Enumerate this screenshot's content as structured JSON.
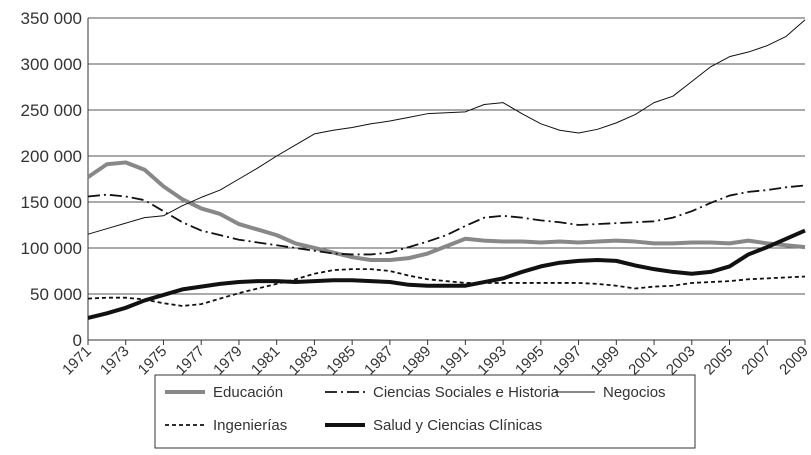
{
  "chart_data": {
    "type": "line",
    "x": [
      1971,
      1972,
      1973,
      1974,
      1975,
      1976,
      1977,
      1978,
      1979,
      1980,
      1981,
      1982,
      1983,
      1984,
      1985,
      1986,
      1987,
      1988,
      1989,
      1990,
      1991,
      1992,
      1993,
      1994,
      1995,
      1996,
      1997,
      1998,
      1999,
      2000,
      2001,
      2002,
      2003,
      2004,
      2005,
      2006,
      2007,
      2008,
      2009
    ],
    "xlim": [
      1971,
      2009
    ],
    "xticks": [
      1971,
      1973,
      1975,
      1977,
      1979,
      1981,
      1983,
      1985,
      1987,
      1989,
      1991,
      1993,
      1995,
      1997,
      1999,
      2001,
      2003,
      2005,
      2007,
      2009
    ],
    "ylim": [
      0,
      350000
    ],
    "yticks": [
      0,
      {
        "value": 50000,
        "label": "50 000"
      },
      {
        "value": 100000,
        "label": "100 000"
      },
      {
        "value": 150000,
        "label": "150 000"
      },
      {
        "value": 200000,
        "label": "200 000"
      },
      {
        "value": 250000,
        "label": "250 000"
      },
      {
        "value": 300000,
        "label": "300 000"
      },
      {
        "value": 350000,
        "label": "350 000"
      }
    ],
    "grid": true,
    "legend": "bottom",
    "series": [
      {
        "name": "Educación",
        "color": "#888888",
        "width": 4,
        "dash": "none",
        "values": [
          177000,
          191000,
          193000,
          185000,
          167000,
          153000,
          143000,
          137000,
          126000,
          120000,
          114000,
          105000,
          100000,
          95000,
          90000,
          87000,
          87000,
          89000,
          94000,
          102000,
          110000,
          108000,
          107000,
          107000,
          106000,
          107000,
          106000,
          107000,
          108000,
          107000,
          105000,
          105000,
          106000,
          106000,
          105000,
          108000,
          105000,
          103000,
          101000
        ]
      },
      {
        "name": "Ciencias Sociales e Historia",
        "color": "#111111",
        "width": 1.8,
        "dash": "12 4 2 4",
        "values": [
          156000,
          158000,
          156000,
          152000,
          140000,
          128000,
          119000,
          114000,
          109000,
          106000,
          103000,
          100000,
          97000,
          94000,
          93000,
          93000,
          95000,
          101000,
          107000,
          114000,
          124000,
          133000,
          135000,
          133000,
          130000,
          128000,
          125000,
          126000,
          127000,
          128000,
          129000,
          133000,
          140000,
          149000,
          157000,
          161000,
          163000,
          166000,
          168000
        ]
      },
      {
        "name": "Negocios",
        "color": "#111111",
        "width": 1,
        "dash": "none",
        "values": [
          115000,
          121000,
          127000,
          133000,
          135000,
          146000,
          155000,
          163000,
          175000,
          187000,
          200000,
          212000,
          224000,
          228000,
          231000,
          235000,
          238000,
          242000,
          246000,
          247000,
          248000,
          256000,
          258000,
          246000,
          235000,
          228000,
          225000,
          229000,
          236000,
          245000,
          258000,
          265000,
          281000,
          297000,
          308000,
          313000,
          320000,
          330000,
          348000
        ]
      },
      {
        "name": "Ingenierías",
        "color": "#111111",
        "width": 1.8,
        "dash": "4 3",
        "values": [
          45000,
          46000,
          46000,
          44000,
          40000,
          37000,
          39000,
          45000,
          51000,
          56000,
          61000,
          66000,
          72000,
          76000,
          77000,
          77000,
          75000,
          70000,
          66000,
          64000,
          62000,
          62000,
          62000,
          62000,
          62000,
          62000,
          62000,
          61000,
          59000,
          56000,
          58000,
          59000,
          62000,
          63000,
          64000,
          66000,
          67000,
          68000,
          69000
        ]
      },
      {
        "name": "Salud y Ciencias Clínicas",
        "color": "#111111",
        "width": 4,
        "dash": "none",
        "values": [
          24000,
          29000,
          35000,
          43000,
          49000,
          55000,
          58000,
          61000,
          63000,
          64000,
          64000,
          63000,
          64000,
          65000,
          65000,
          64000,
          63000,
          60000,
          59000,
          59000,
          59000,
          63000,
          67000,
          74000,
          80000,
          84000,
          86000,
          87000,
          86000,
          81000,
          77000,
          74000,
          72000,
          74000,
          80000,
          93000,
          101000,
          110000,
          119000
        ]
      }
    ]
  }
}
